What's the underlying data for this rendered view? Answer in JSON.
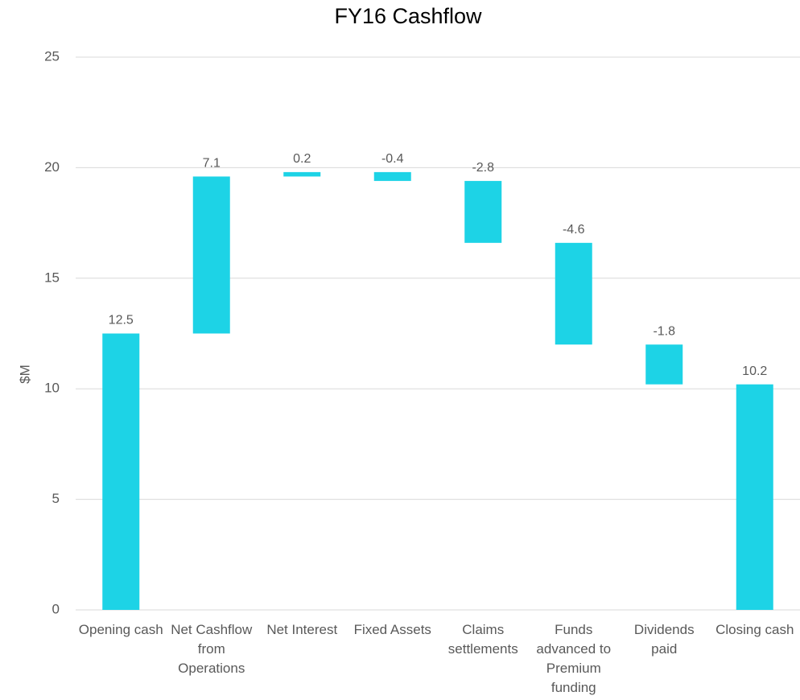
{
  "chart_data": {
    "type": "waterfall",
    "title": "FY16 Cashflow",
    "y_label": "$M",
    "categories": [
      "Opening cash",
      "Net Cashflow from Operations",
      "Net Interest",
      "Fixed Assets",
      "Claims settlements",
      "Funds advanced to Premium funding",
      "Dividends paid",
      "Closing cash"
    ],
    "values": [
      12.5,
      7.1,
      0.2,
      -0.4,
      -2.8,
      -4.6,
      -1.8,
      10.2
    ],
    "color": "#1dd3e6",
    "ylim": [
      0,
      25
    ],
    "yticks": [
      0,
      5,
      10,
      15,
      20,
      25
    ],
    "grid": true
  }
}
